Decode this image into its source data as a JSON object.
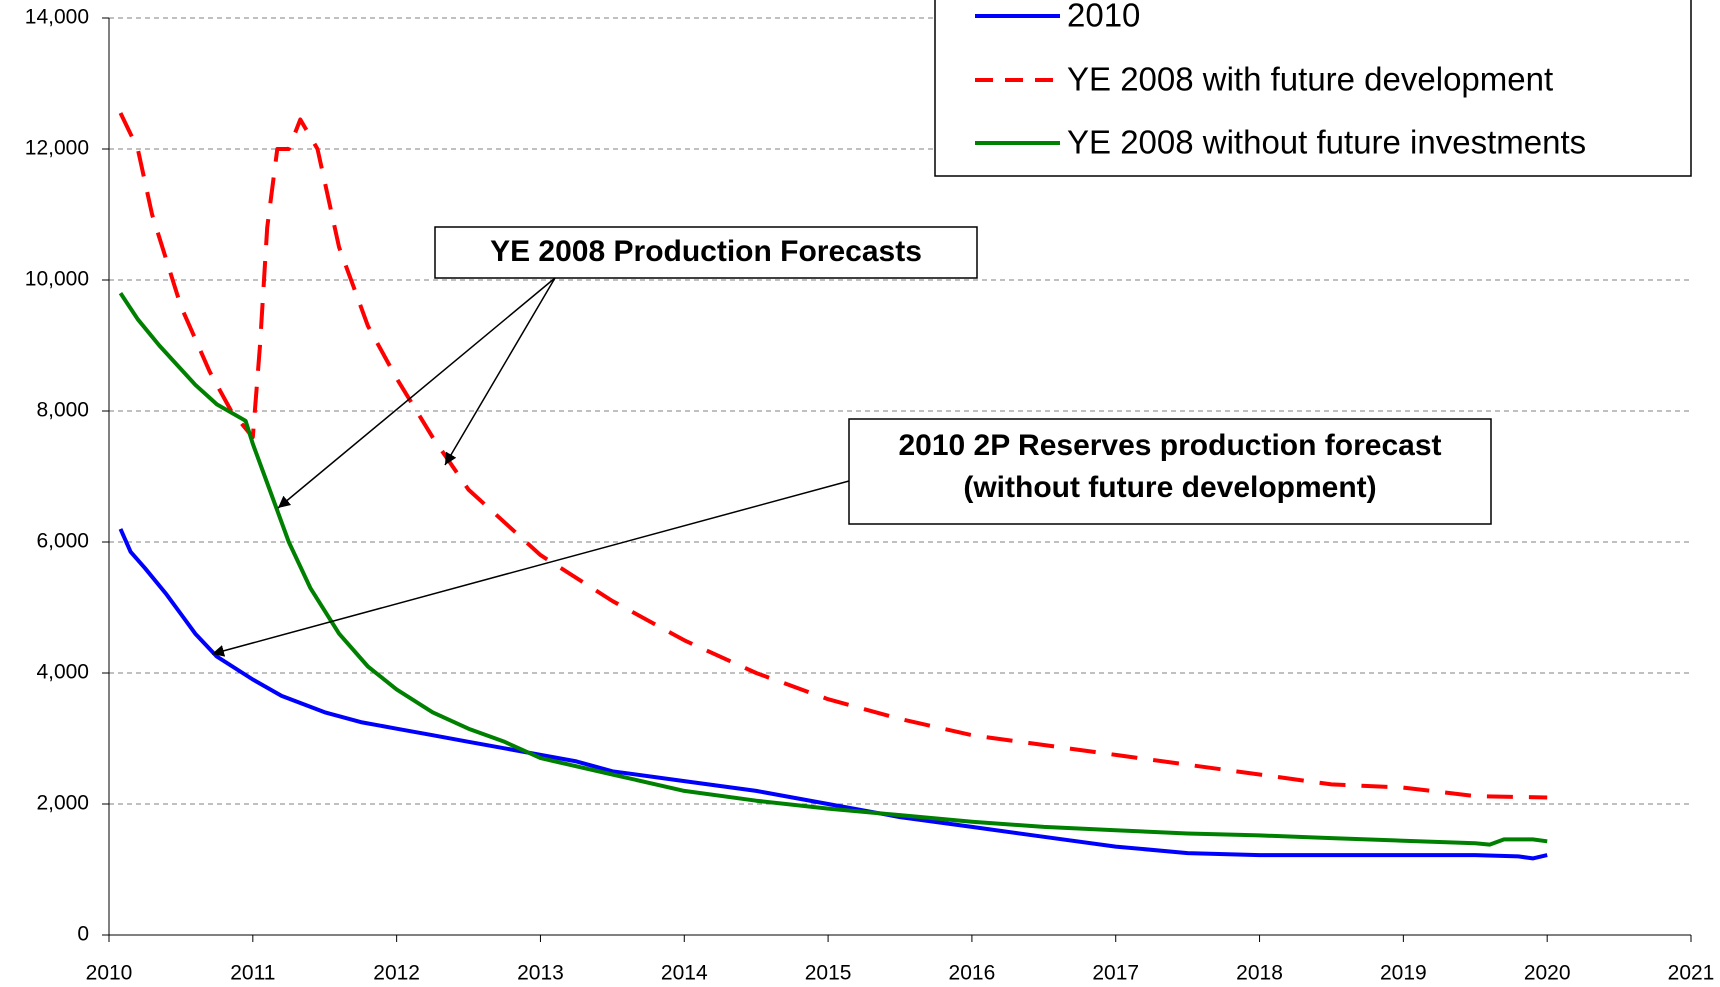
{
  "chart_data": {
    "type": "line",
    "xlim": [
      2010,
      2021
    ],
    "xticks": [
      2010,
      2011,
      2012,
      2013,
      2014,
      2015,
      2016,
      2017,
      2018,
      2019,
      2020,
      2021
    ],
    "ylim": [
      0,
      14000
    ],
    "yticks": [
      0,
      {
        "value": 2000,
        "label": "2,000"
      },
      {
        "value": 4000,
        "label": "4,000"
      },
      {
        "value": 6000,
        "label": "6,000"
      },
      {
        "value": 8000,
        "label": "8,000"
      },
      {
        "value": 10000,
        "label": "10,000"
      },
      {
        "value": 12000,
        "label": "12,000"
      },
      {
        "value": 14000,
        "label": "14,000"
      }
    ],
    "grid": true,
    "legend": "upper right",
    "series": [
      {
        "name": "2010",
        "color": "#0000ff",
        "dash": "solid",
        "x": [
          2010.08,
          2010.15,
          2010.25,
          2010.4,
          2010.5,
          2010.6,
          2010.75,
          2011,
          2011.2,
          2011.5,
          2011.75,
          2012,
          2012.25,
          2012.5,
          2012.75,
          2013,
          2013.25,
          2013.5,
          2014,
          2014.5,
          2015,
          2015.5,
          2016,
          2016.5,
          2017,
          2017.5,
          2018,
          2018.5,
          2019,
          2019.5,
          2019.8,
          2019.9,
          2020
        ],
        "values": [
          6200,
          5850,
          5600,
          5200,
          4900,
          4600,
          4250,
          3900,
          3650,
          3400,
          3250,
          3150,
          3050,
          2950,
          2850,
          2750,
          2650,
          2500,
          2350,
          2200,
          2000,
          1800,
          1650,
          1500,
          1350,
          1250,
          1220,
          1220,
          1220,
          1220,
          1200,
          1170,
          1220
        ]
      },
      {
        "name": "YE 2008 with future development",
        "color": "#ff0000",
        "dash": "dashed",
        "x": [
          2010.08,
          2010.2,
          2010.3,
          2010.5,
          2010.7,
          2010.85,
          2011,
          2011.05,
          2011.1,
          2011.17,
          2011.25,
          2011.33,
          2011.45,
          2011.6,
          2011.8,
          2012,
          2012.25,
          2012.5,
          2013,
          2013.5,
          2014,
          2014.5,
          2015,
          2015.5,
          2016,
          2016.5,
          2017,
          2017.5,
          2018,
          2018.5,
          2019,
          2019.5,
          2020
        ],
        "values": [
          12550,
          12000,
          11000,
          9600,
          8600,
          8000,
          7600,
          9000,
          10800,
          12000,
          12000,
          12450,
          12000,
          10500,
          9300,
          8500,
          7600,
          6800,
          5800,
          5100,
          4500,
          4000,
          3600,
          3300,
          3050,
          2900,
          2750,
          2600,
          2450,
          2300,
          2250,
          2120,
          2100
        ]
      },
      {
        "name": "YE 2008 without future investments",
        "color": "#008000",
        "dash": "solid",
        "x": [
          2010.08,
          2010.2,
          2010.35,
          2010.6,
          2010.75,
          2010.95,
          2011,
          2011.1,
          2011.25,
          2011.4,
          2011.6,
          2011.8,
          2012,
          2012.25,
          2012.5,
          2012.75,
          2013,
          2013.5,
          2014,
          2014.5,
          2015,
          2015.5,
          2016,
          2016.5,
          2017,
          2017.5,
          2018,
          2018.5,
          2019,
          2019.5,
          2019.6,
          2019.7,
          2019.9,
          2020
        ],
        "values": [
          9800,
          9400,
          9000,
          8400,
          8100,
          7850,
          7500,
          6900,
          6000,
          5300,
          4600,
          4100,
          3750,
          3400,
          3150,
          2950,
          2700,
          2450,
          2200,
          2050,
          1930,
          1830,
          1730,
          1650,
          1600,
          1550,
          1520,
          1480,
          1440,
          1400,
          1380,
          1460,
          1460,
          1430
        ]
      }
    ],
    "annotations": [
      {
        "lines": [
          "YE 2008 Production Forecasts"
        ]
      },
      {
        "lines": [
          "2010 2P Reserves production forecast",
          "(without future development)"
        ]
      }
    ]
  }
}
